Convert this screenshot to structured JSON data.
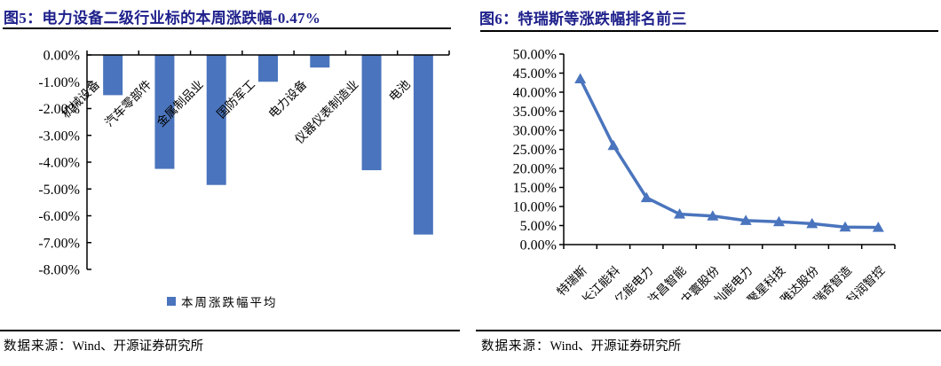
{
  "colors": {
    "title_navy": "#1F218C",
    "series_blue": "#4A74BD",
    "axis_black": "#000000"
  },
  "left_panel": {
    "figure_label": "图5：",
    "title": "电力设备二级行业标的本周涨跌幅-0.47%",
    "legend_label": "本周涨跌幅平均",
    "source_prefix": "数据来源：",
    "source_text": "Wind、开源证券研究所"
  },
  "right_panel": {
    "figure_label": "图6：",
    "title": "特瑞斯等涨跌幅排名前三",
    "source_prefix": "数据来源：",
    "source_text": "Wind、开源证券研究所"
  },
  "chart_data": [
    {
      "id": "industry-weekly-change-bar",
      "type": "bar",
      "title": "电力设备二级行业标的本周涨跌幅-0.47%",
      "categories": [
        "机械设备",
        "汽车零部件",
        "金属制品业",
        "国防军工",
        "电力设备",
        "仪器仪表制造业",
        "电池"
      ],
      "values": [
        -1.5,
        -4.25,
        -4.85,
        -1.0,
        -0.47,
        -4.3,
        -6.7
      ],
      "unit": "%",
      "legend": [
        "本周涨跌幅平均"
      ],
      "legend_position": "bottom",
      "xlabel": "",
      "ylabel": "",
      "ylim": [
        -8,
        0
      ],
      "y_ticks": [
        "0.00%",
        "-1.00%",
        "-2.00%",
        "-3.00%",
        "-4.00%",
        "-5.00%",
        "-6.00%",
        "-7.00%",
        "-8.00%"
      ],
      "grid": false,
      "bar_color": "#4A74BD"
    },
    {
      "id": "top-gainers-line",
      "type": "line",
      "title": "特瑞斯等涨跌幅排名前三",
      "categories": [
        "特瑞斯",
        "长江能科",
        "亿能电力",
        "许昌智能",
        "中寰股份",
        "灿能电力",
        "聚星科技",
        "雅达股份",
        "瑞奇智造",
        "科润智控"
      ],
      "values": [
        43.5,
        26.0,
        12.3,
        8.0,
        7.5,
        6.3,
        6.0,
        5.5,
        4.6,
        4.5
      ],
      "unit": "%",
      "marker": "triangle-up",
      "xlabel": "",
      "ylabel": "",
      "ylim": [
        0,
        50
      ],
      "y_ticks": [
        "50.00%",
        "45.00%",
        "40.00%",
        "35.00%",
        "30.00%",
        "25.00%",
        "20.00%",
        "15.00%",
        "10.00%",
        "5.00%",
        "0.00%"
      ],
      "grid": false,
      "line_color": "#4A74BD"
    }
  ]
}
